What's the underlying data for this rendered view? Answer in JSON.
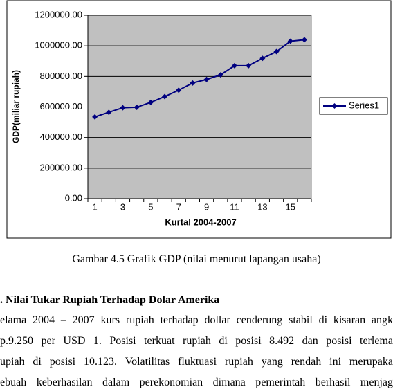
{
  "chart_data": {
    "type": "line",
    "x_label": "Kurtal 2004-2007",
    "y_label": "GDP(miliar rupiah)",
    "categories": [
      "1",
      null,
      "3",
      null,
      "5",
      null,
      "7",
      null,
      "9",
      null,
      "11",
      null,
      "13",
      null,
      "15",
      null
    ],
    "series": [
      {
        "name": "Series1",
        "color": "#000080",
        "values": [
          535000,
          565000,
          595000,
          598000,
          630000,
          668000,
          710000,
          757000,
          780000,
          810000,
          870000,
          870000,
          918000,
          962000,
          1030000,
          1040000
        ]
      }
    ],
    "ylim": [
      0,
      1200000
    ],
    "yticks": [
      {
        "value": 0,
        "label": "0.00"
      },
      {
        "value": 200000,
        "label": "200000.00"
      },
      {
        "value": 400000,
        "label": "400000.00"
      },
      {
        "value": 600000,
        "label": "600000.00"
      },
      {
        "value": 800000,
        "label": "800000.00"
      },
      {
        "value": 1000000,
        "label": "1000000.00"
      },
      {
        "value": 1200000,
        "label": "1200000.00"
      }
    ],
    "grid": true,
    "legend": "right",
    "plot_background": "#c0c0c0"
  },
  "document": {
    "caption": "Gambar 4.5 Grafik GDP (nilai menurut lapangan usaha)",
    "heading": ". Nilai Tukar Rupiah Terhadap Dolar Amerika",
    "paragraph": [
      "elama 2004 – 2007 kurs rupiah terhadap dollar cenderung stabil di kisaran angk",
      "p.9.250 per USD 1. Posisi terkuat rupiah di posisi 8.492 dan posisi terlema",
      "upiah di posisi 10.123. Volatilitas fluktuasi rupiah yang rendah ini merupaka",
      "ebuah keberhasilan dalam perekonomian dimana pemerintah berhasil menjag"
    ]
  }
}
